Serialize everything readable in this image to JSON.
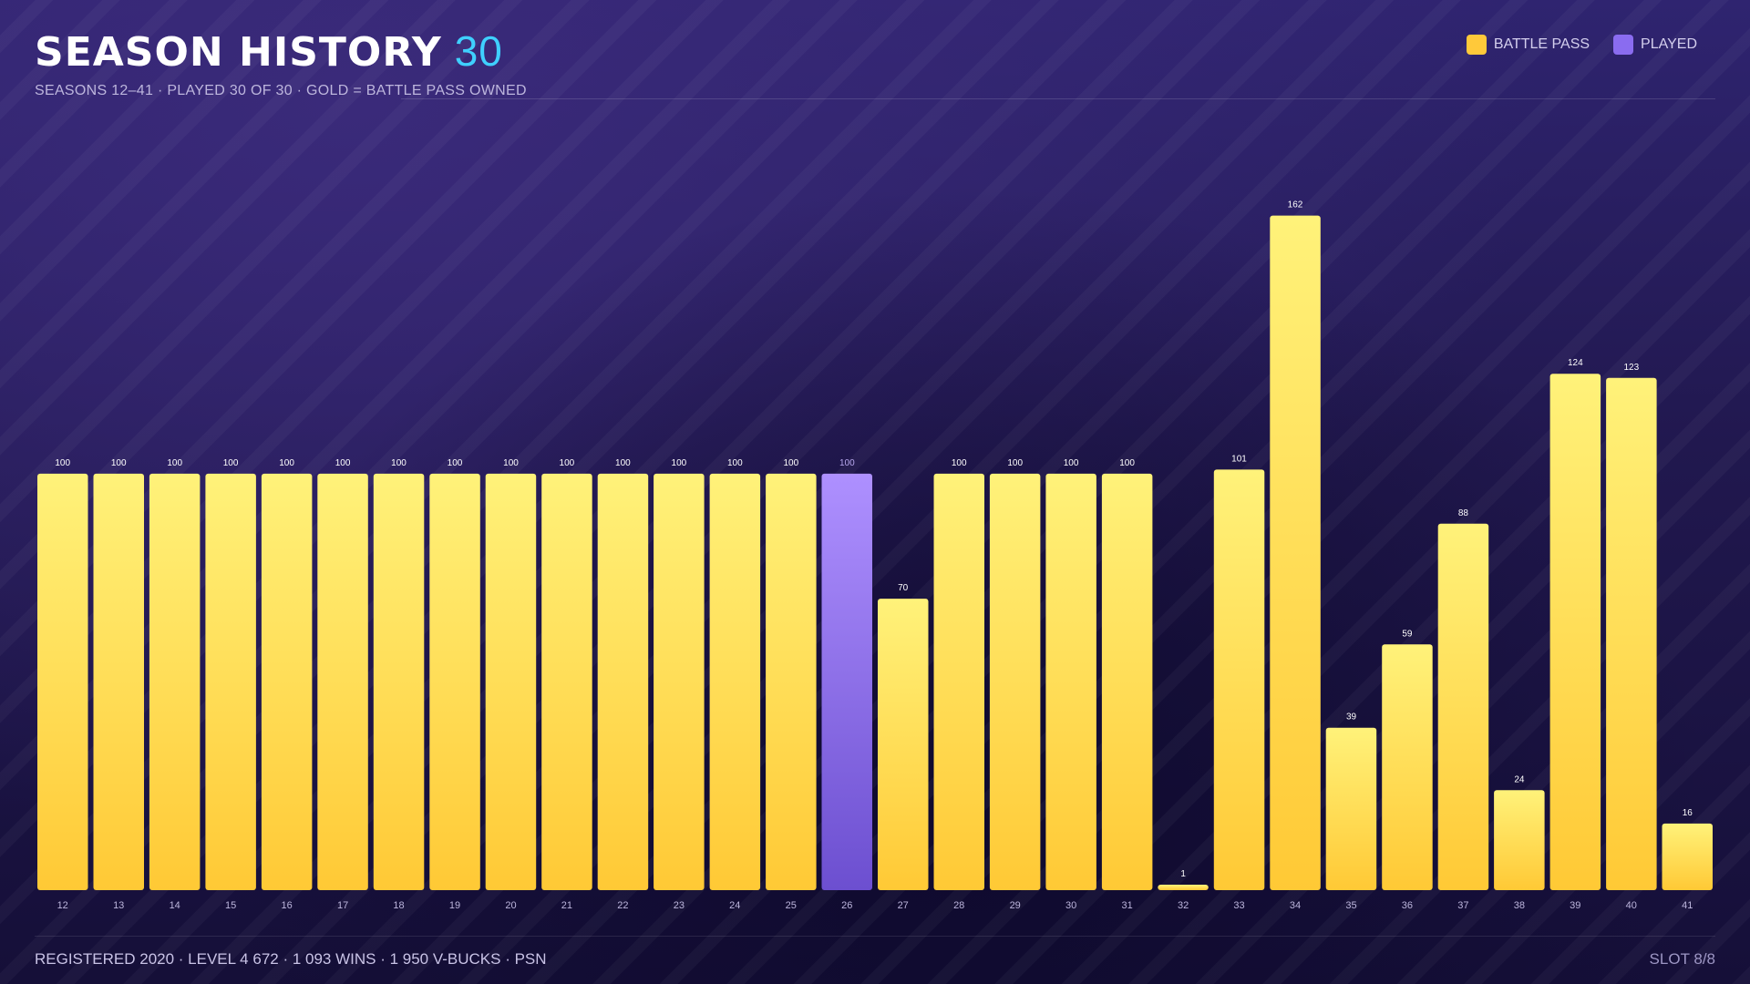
{
  "header": {
    "title": "SEASON HISTORY",
    "count": "30",
    "subtitle": "SEASONS 12–41 · PLAYED 30 OF 30 · GOLD = BATTLE PASS OWNED"
  },
  "legend": [
    {
      "label": "BATTLE PASS",
      "color": "#ffc93a"
    },
    {
      "label": "PLAYED",
      "color": "#8a6cf0"
    }
  ],
  "footer": {
    "stats": "REGISTERED 2020 · LEVEL 4 672 · 1 093 WINS · 1 950 V-BUCKS · PSN",
    "slot": "SLOT 8/8"
  },
  "colors": {
    "battle_pass_top": "#fff27a",
    "battle_pass_bottom": "#ffc935",
    "played_top": "#ae90ff",
    "played_bottom": "#6c4fd0"
  },
  "chart_data": {
    "type": "bar",
    "categories": [
      "12",
      "13",
      "14",
      "15",
      "16",
      "17",
      "18",
      "19",
      "20",
      "21",
      "22",
      "23",
      "24",
      "25",
      "26",
      "27",
      "28",
      "29",
      "30",
      "31",
      "32",
      "33",
      "34",
      "35",
      "36",
      "37",
      "38",
      "39",
      "40",
      "41"
    ],
    "values": [
      100,
      100,
      100,
      100,
      100,
      100,
      100,
      100,
      100,
      100,
      100,
      100,
      100,
      100,
      100,
      70,
      100,
      100,
      100,
      100,
      1,
      101,
      162,
      39,
      59,
      88,
      24,
      124,
      123,
      16
    ],
    "status": [
      "battle_pass",
      "battle_pass",
      "battle_pass",
      "battle_pass",
      "battle_pass",
      "battle_pass",
      "battle_pass",
      "battle_pass",
      "battle_pass",
      "battle_pass",
      "battle_pass",
      "battle_pass",
      "battle_pass",
      "battle_pass",
      "played",
      "battle_pass",
      "battle_pass",
      "battle_pass",
      "battle_pass",
      "battle_pass",
      "battle_pass",
      "battle_pass",
      "battle_pass",
      "battle_pass",
      "battle_pass",
      "battle_pass",
      "battle_pass",
      "battle_pass",
      "battle_pass",
      "battle_pass"
    ],
    "ylim": [
      0,
      170
    ],
    "grid": false,
    "legend_position": "top-right"
  }
}
